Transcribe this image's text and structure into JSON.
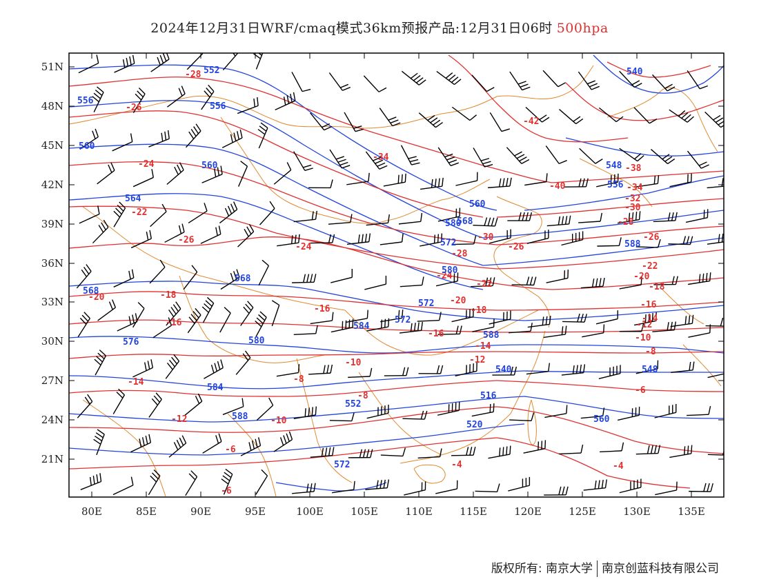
{
  "title": {
    "main": "2024年12月31日WRF/cmaq模式36km预报产品:12月31日06时",
    "level": "500hpa"
  },
  "axes": {
    "lat_labels": [
      "51N",
      "48N",
      "45N",
      "42N",
      "39N",
      "36N",
      "33N",
      "30N",
      "27N",
      "24N",
      "21N"
    ],
    "lon_labels": [
      "80E",
      "85E",
      "90E",
      "95E",
      "100E",
      "105E",
      "110E",
      "115E",
      "120E",
      "125E",
      "130E",
      "135E"
    ]
  },
  "colors": {
    "temperature": "#e03030",
    "height": "#2244dd",
    "borders": "#e08a30",
    "barbs": "#000000"
  },
  "red_labels": [
    {
      "t": "-28"
    },
    {
      "t": "-26"
    },
    {
      "t": "-24"
    },
    {
      "t": "-22"
    },
    {
      "t": "-26"
    },
    {
      "t": "-24"
    },
    {
      "t": "-20"
    },
    {
      "t": "-18"
    },
    {
      "t": "-16"
    },
    {
      "t": "-16"
    },
    {
      "t": "-14"
    },
    {
      "t": "-12"
    },
    {
      "t": "-10"
    },
    {
      "t": "-8"
    },
    {
      "t": "-6"
    },
    {
      "t": "-34"
    },
    {
      "t": "-42"
    },
    {
      "t": "-40"
    },
    {
      "t": "-38"
    },
    {
      "t": "-34"
    },
    {
      "t": "-32"
    },
    {
      "t": "-30"
    },
    {
      "t": "-28"
    },
    {
      "t": "-26"
    },
    {
      "t": "-22"
    },
    {
      "t": "-20"
    },
    {
      "t": "-18"
    },
    {
      "t": "-16"
    },
    {
      "t": "-14"
    },
    {
      "t": "-12"
    },
    {
      "t": "-10"
    },
    {
      "t": "-8"
    },
    {
      "t": "-6"
    },
    {
      "t": "-4"
    },
    {
      "t": "-4"
    },
    {
      "t": "-30"
    },
    {
      "t": "-28"
    },
    {
      "t": "-26"
    },
    {
      "t": "-24"
    },
    {
      "t": "-22"
    },
    {
      "t": "-20"
    },
    {
      "t": "-18"
    },
    {
      "t": "-16"
    },
    {
      "t": "-14"
    },
    {
      "t": "-12"
    },
    {
      "t": "-10"
    },
    {
      "t": "-8"
    },
    {
      "t": "-6"
    }
  ],
  "blue_labels": [
    {
      "t": "552"
    },
    {
      "t": "556"
    },
    {
      "t": "556"
    },
    {
      "t": "560"
    },
    {
      "t": "560"
    },
    {
      "t": "564"
    },
    {
      "t": "568"
    },
    {
      "t": "568"
    },
    {
      "t": "572"
    },
    {
      "t": "572"
    },
    {
      "t": "576"
    },
    {
      "t": "580"
    },
    {
      "t": "584"
    },
    {
      "t": "588"
    },
    {
      "t": "516"
    },
    {
      "t": "520"
    },
    {
      "t": "540"
    },
    {
      "t": "548"
    },
    {
      "t": "556"
    },
    {
      "t": "560"
    },
    {
      "t": "568"
    },
    {
      "t": "572"
    },
    {
      "t": "580"
    },
    {
      "t": "584"
    },
    {
      "t": "588"
    },
    {
      "t": "540"
    },
    {
      "t": "548"
    },
    {
      "t": "552"
    },
    {
      "t": "560"
    },
    {
      "t": "572"
    },
    {
      "t": "580"
    },
    {
      "t": "588"
    }
  ],
  "footer": {
    "copyright": "版权所有: 南京大学",
    "company": "南京创蓝科技有限公司"
  }
}
